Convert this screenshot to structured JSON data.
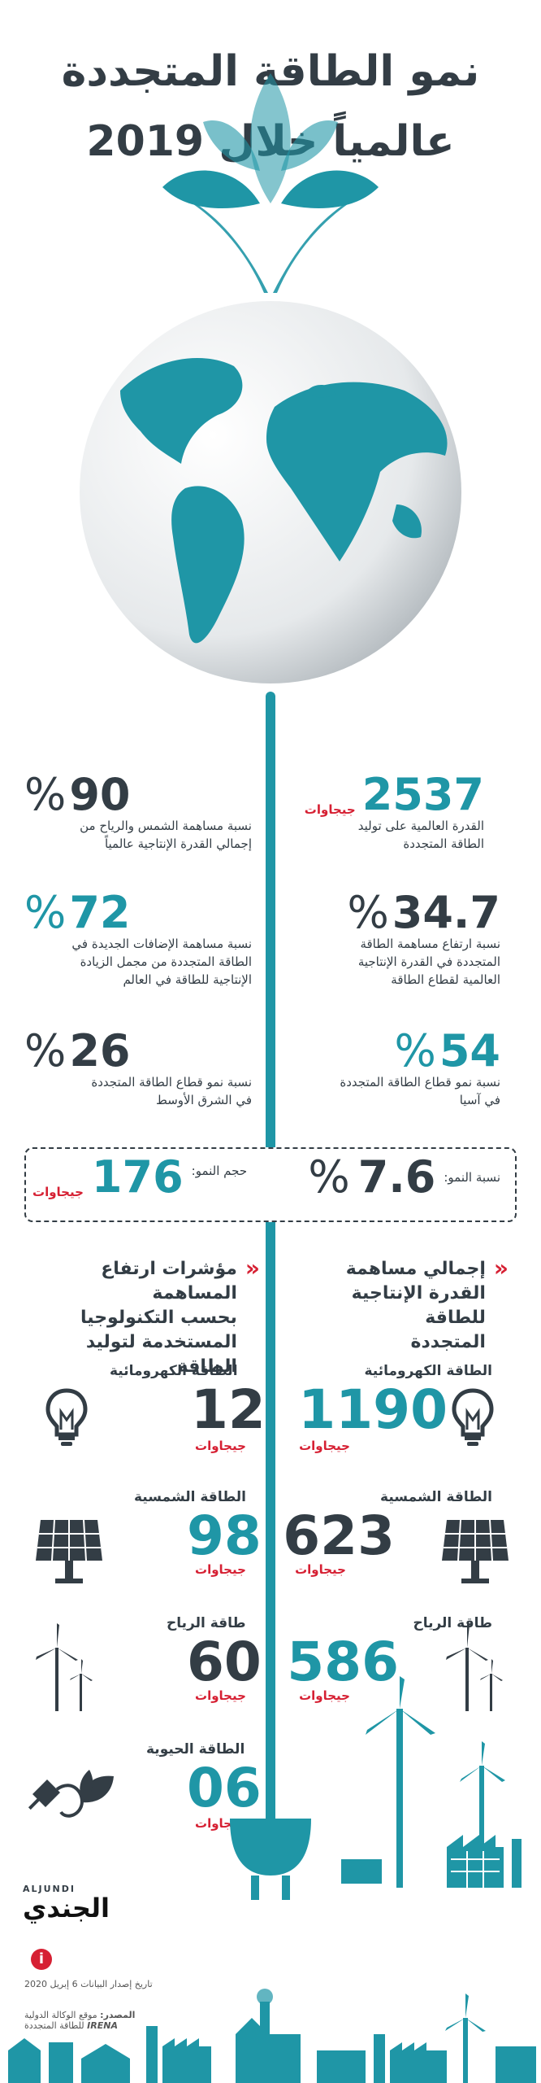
{
  "header": {
    "title_line1": "نمو الطاقة المتجددة",
    "title_line2": "عالمياً خلال 2019"
  },
  "stats": {
    "capacity": {
      "value": "2537",
      "unit": "جيجاوات",
      "desc1": "القدرة العالمية على توليد",
      "desc2": "الطاقة المتجددة"
    },
    "solar_wind_share": {
      "value": "90",
      "pct": "%",
      "desc1": "نسبة مساهمة الشمس والرياح من",
      "desc2": "إجمالي القدرة الإنتاجية عالمياً"
    },
    "share_increase": {
      "value": "34.7",
      "pct": "%",
      "desc1": "نسبة ارتفاع مساهمة الطاقة",
      "desc2": "المتجددة في القدرة الإنتاجية",
      "desc3": "العالمية لقطاع الطاقة"
    },
    "new_additions": {
      "value": "72",
      "pct": "%",
      "desc1": "نسبة مساهمة الإضافات الجديدة في",
      "desc2": "الطاقة المتجددة من مجمل الزيادة",
      "desc3": "الإنتاجية للطاقة في العالم"
    },
    "asia_growth": {
      "value": "54",
      "pct": "%",
      "desc1": "نسبة نمو قطاع الطاقة المتجددة",
      "desc2": "في آسيا"
    },
    "middle_east": {
      "value": "26",
      "pct": "%",
      "desc1": "نسبة نمو قطاع الطاقة المتجددة",
      "desc2": "في الشرق الأوسط"
    }
  },
  "growth_box": {
    "rate_label": "نسبة النمو:",
    "rate_value": "7.6",
    "rate_pct": "%",
    "volume_label": "حجم النمو:",
    "volume_value": "176",
    "volume_unit": "جيجاوات"
  },
  "sections": {
    "right_title1": "إجمالي مساهمة",
    "right_title2": "القدرة الإنتاجية للطاقة",
    "right_title3": "المتجددة",
    "left_title1": "مؤشرات ارتفاع المساهمة",
    "left_title2": "بحسب التكنولوجيا",
    "left_title3": "المستخدمة لتوليد الطاقة"
  },
  "right_items": [
    {
      "label": "الطاقة الكهرومائية",
      "value": "1190",
      "unit": "جيجاوات",
      "icon": "light-bulb-icon"
    },
    {
      "label": "الطاقة الشمسية",
      "value": "623",
      "unit": "جيجاوات",
      "icon": "solar-panel-icon"
    },
    {
      "label": "طاقة الرياح",
      "value": "586",
      "unit": "جيجاوات",
      "icon": "wind-turbine-icon"
    }
  ],
  "left_items": [
    {
      "label": "الطاقة الكهرومائية",
      "value": "12",
      "unit": "جيجاوات",
      "icon": "light-bulb-icon"
    },
    {
      "label": "الطاقة الشمسية",
      "value": "98",
      "unit": "جيجاوات",
      "icon": "solar-panel-icon"
    },
    {
      "label": "طاقة الرياح",
      "value": "60",
      "unit": "جيجاوات",
      "icon": "wind-turbine-icon"
    },
    {
      "label": "الطاقة الحيوية",
      "value": "06",
      "unit": "جيجاوات",
      "icon": "bio-plug-icon"
    }
  ],
  "footer": {
    "brand_latin": "ALJUNDI",
    "brand_arabic": "الجندي",
    "date_note": "تاريخ إصدار البيانات 6 إبريل 2020",
    "source_label": "المصدر:",
    "source_text": "موقع الوكالة الدولية",
    "source_org": "IRENA",
    "source_text2": "للطاقة المتجددة"
  },
  "colors": {
    "teal": "#1f96a6",
    "dark": "#333d45",
    "red": "#d62033"
  }
}
